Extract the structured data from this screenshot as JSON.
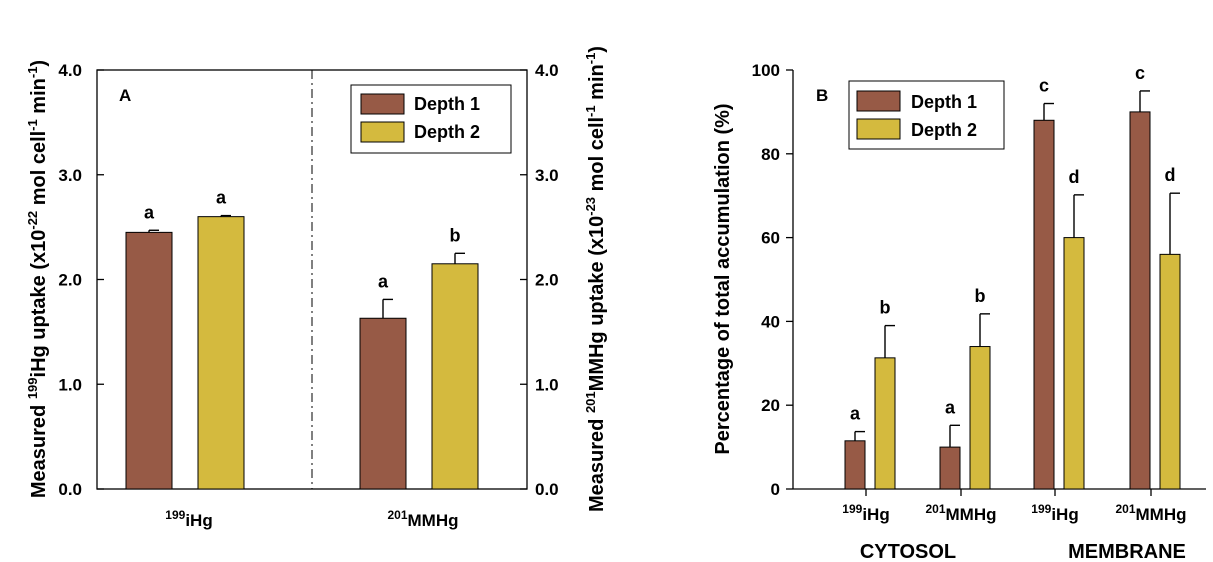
{
  "colors": {
    "depth1": "#975a46",
    "depth2": "#d4ba3e"
  },
  "chart_data": [
    {
      "type": "bar",
      "panel_label": "A",
      "ylabel_left": {
        "pre": "Measured ",
        "sup1": "199",
        "mid": "iHg uptake (x10",
        "sup2": "-22",
        "mid2": " mol cell",
        "sup3": "-1",
        "post": " min",
        "sup4": "-1",
        "end": ")"
      },
      "ylabel_right": {
        "pre": "Measured ",
        "sup1": "201",
        "mid": "MMHg uptake (x10",
        "sup2": "-23",
        "mid2": " mol cell",
        "sup3": "-1",
        "post": " min",
        "sup4": "-1",
        "end": ")"
      },
      "ylim": [
        0,
        4
      ],
      "yticks": [
        "0.0",
        "1.0",
        "2.0",
        "3.0",
        "4.0"
      ],
      "categories": [
        {
          "sup": "199",
          "name": "iHg"
        },
        {
          "sup": "201",
          "name": "MMHg"
        }
      ],
      "series": [
        {
          "name": "Depth 1",
          "values": [
            2.45,
            1.63
          ],
          "errors": [
            0.02,
            0.18
          ],
          "letters": [
            "a",
            "a"
          ]
        },
        {
          "name": "Depth 2",
          "values": [
            2.6,
            2.15
          ],
          "errors": [
            0.01,
            0.1
          ],
          "letters": [
            "a",
            "b"
          ]
        }
      ],
      "legend_position": "top-right"
    },
    {
      "type": "bar",
      "panel_label": "B",
      "ylabel": "Percentage of total accumulation (%)",
      "ylim": [
        0,
        100
      ],
      "yticks": [
        "0",
        "20",
        "40",
        "60",
        "80",
        "100"
      ],
      "categories": [
        {
          "sup": "199",
          "name": "iHg"
        },
        {
          "sup": "201",
          "name": "MMHg"
        },
        {
          "sup": "199",
          "name": "iHg"
        },
        {
          "sup": "201",
          "name": "MMHg"
        }
      ],
      "groups": [
        "CYTOSOL",
        "MEMBRANE"
      ],
      "series": [
        {
          "name": "Depth 1",
          "values": [
            11.5,
            10,
            88,
            90
          ],
          "errors": [
            2.2,
            5.2,
            4,
            5
          ],
          "letters": [
            "a",
            "a",
            "c",
            "c"
          ]
        },
        {
          "name": "Depth 2",
          "values": [
            31.3,
            34,
            60,
            56
          ],
          "errors": [
            7.7,
            7.8,
            10.2,
            14.6
          ],
          "letters": [
            "b",
            "b",
            "d",
            "d"
          ]
        }
      ],
      "legend_position": "top-left"
    }
  ]
}
